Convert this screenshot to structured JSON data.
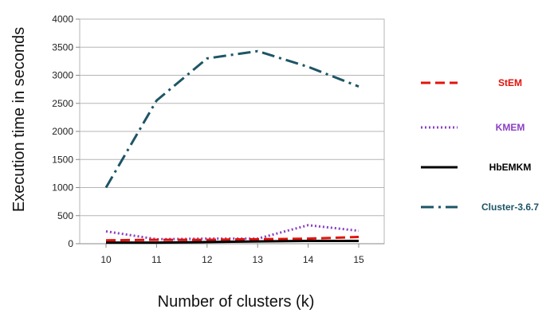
{
  "chart_data": {
    "type": "line",
    "title": "",
    "xlabel": "Number of clusters (k)",
    "ylabel": "Execution time in seconds",
    "x": [
      10,
      11,
      12,
      13,
      14,
      15
    ],
    "ylim": [
      0,
      4000
    ],
    "yticks": [
      0,
      500,
      1000,
      1500,
      2000,
      2500,
      3000,
      3500,
      4000
    ],
    "grid": "horizontal",
    "legend_position": "right",
    "series": [
      {
        "name": "StEM",
        "values": [
          60,
          70,
          70,
          80,
          90,
          120
        ],
        "color": "#e3120b",
        "style": "dashed"
      },
      {
        "name": "KMEM",
        "values": [
          220,
          80,
          90,
          90,
          330,
          230
        ],
        "color": "#8a3fc4",
        "style": "dotted"
      },
      {
        "name": "HbEMKM",
        "values": [
          20,
          20,
          30,
          40,
          50,
          50
        ],
        "color": "#000000",
        "style": "solid"
      },
      {
        "name": "Cluster-3.6.7",
        "values": [
          1000,
          2550,
          3300,
          3430,
          3150,
          2800
        ],
        "color": "#1d5566",
        "style": "dash-dot"
      }
    ]
  }
}
